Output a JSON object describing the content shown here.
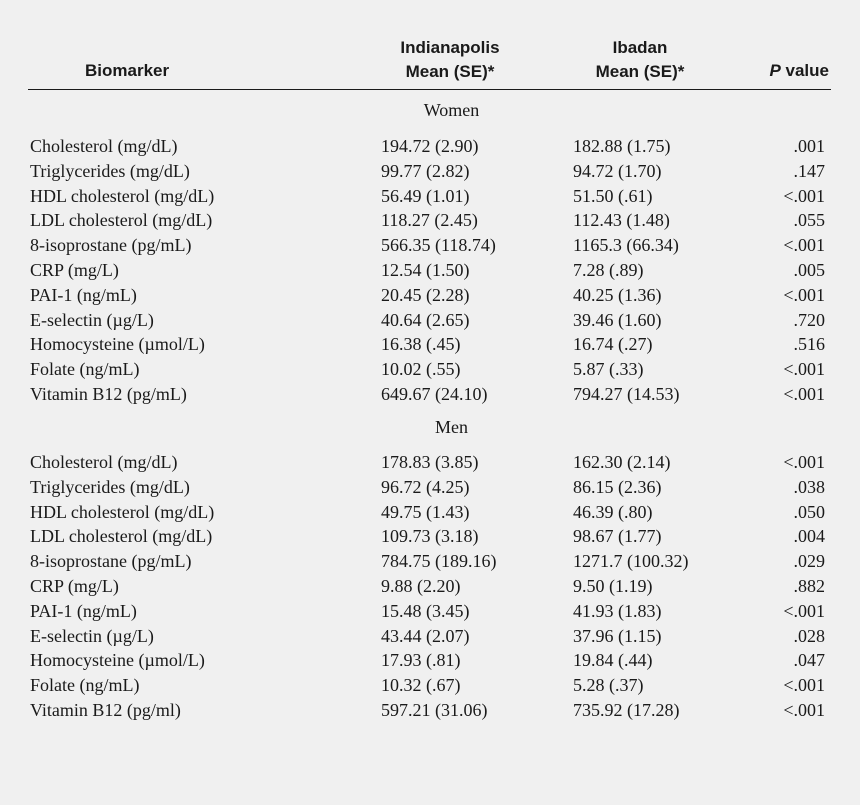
{
  "header": {
    "biomarker": "Biomarker",
    "indianapolis_line1": "Indianapolis",
    "indianapolis_line2": "Mean (SE)*",
    "ibadan_line1": "Ibadan",
    "ibadan_line2": "Mean (SE)*",
    "p_italic": "P",
    "p_rest": " value"
  },
  "sections": [
    {
      "label": "Women",
      "rows": [
        {
          "name": "Cholesterol (mg/dL)",
          "indianapolis": "194.72 (2.90)",
          "ibadan": "182.88 (1.75)",
          "p": ".001"
        },
        {
          "name": "Triglycerides (mg/dL)",
          "indianapolis": "99.77 (2.82)",
          "ibadan": "94.72 (1.70)",
          "p": ".147"
        },
        {
          "name": "HDL cholesterol (mg/dL)",
          "indianapolis": "56.49 (1.01)",
          "ibadan": "51.50 (.61)",
          "p": "<.001"
        },
        {
          "name": "LDL cholesterol (mg/dL)",
          "indianapolis": "118.27 (2.45)",
          "ibadan": "112.43 (1.48)",
          "p": ".055"
        },
        {
          "name": "8-isoprostane (pg/mL)",
          "indianapolis": "566.35 (118.74)",
          "ibadan": "1165.3 (66.34)",
          "p": "<.001"
        },
        {
          "name": "CRP (mg/L)",
          "indianapolis": "12.54 (1.50)",
          "ibadan": "7.28 (.89)",
          "p": ".005"
        },
        {
          "name": "PAI-1 (ng/mL)",
          "indianapolis": "20.45 (2.28)",
          "ibadan": "40.25 (1.36)",
          "p": "<.001"
        },
        {
          "name": "E-selectin (µg/L)",
          "indianapolis": "40.64 (2.65)",
          "ibadan": "39.46 (1.60)",
          "p": ".720"
        },
        {
          "name": "Homocysteine (µmol/L)",
          "indianapolis": "16.38 (.45)",
          "ibadan": "16.74 (.27)",
          "p": ".516"
        },
        {
          "name": "Folate (ng/mL)",
          "indianapolis": "10.02 (.55)",
          "ibadan": "5.87 (.33)",
          "p": "<.001"
        },
        {
          "name": "Vitamin B12 (pg/mL)",
          "indianapolis": "649.67 (24.10)",
          "ibadan": "794.27 (14.53)",
          "p": "<.001"
        }
      ]
    },
    {
      "label": "Men",
      "rows": [
        {
          "name": "Cholesterol (mg/dL)",
          "indianapolis": "178.83 (3.85)",
          "ibadan": "162.30 (2.14)",
          "p": "<.001"
        },
        {
          "name": "Triglycerides (mg/dL)",
          "indianapolis": "96.72 (4.25)",
          "ibadan": "86.15 (2.36)",
          "p": ".038"
        },
        {
          "name": "HDL cholesterol (mg/dL)",
          "indianapolis": "49.75 (1.43)",
          "ibadan": "46.39 (.80)",
          "p": ".050"
        },
        {
          "name": "LDL cholesterol (mg/dL)",
          "indianapolis": "109.73 (3.18)",
          "ibadan": "98.67 (1.77)",
          "p": ".004"
        },
        {
          "name": "8-isoprostane (pg/mL)",
          "indianapolis": "784.75 (189.16)",
          "ibadan": "1271.7 (100.32)",
          "p": ".029"
        },
        {
          "name": "CRP (mg/L)",
          "indianapolis": "9.88 (2.20)",
          "ibadan": "9.50 (1.19)",
          "p": ".882"
        },
        {
          "name": "PAI-1 (ng/mL)",
          "indianapolis": "15.48 (3.45)",
          "ibadan": "41.93 (1.83)",
          "p": "<.001"
        },
        {
          "name": "E-selectin (µg/L)",
          "indianapolis": "43.44 (2.07)",
          "ibadan": "37.96 (1.15)",
          "p": ".028"
        },
        {
          "name": "Homocysteine (µmol/L)",
          "indianapolis": "17.93 (.81)",
          "ibadan": "19.84 (.44)",
          "p": ".047"
        },
        {
          "name": "Folate (ng/mL)",
          "indianapolis": "10.32 (.67)",
          "ibadan": "5.28 (.37)",
          "p": "<.001"
        },
        {
          "name": "Vitamin B12 (pg/ml)",
          "indianapolis": "597.21 (31.06)",
          "ibadan": "735.92 (17.28)",
          "p": "<.001"
        }
      ]
    }
  ]
}
